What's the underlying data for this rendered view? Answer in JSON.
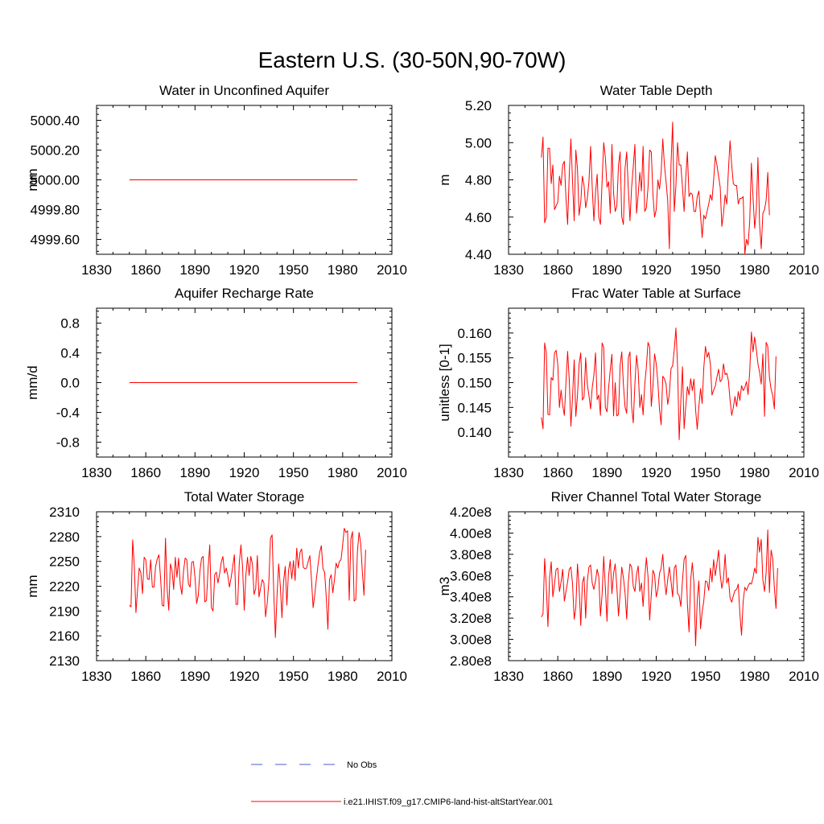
{
  "figure_title": "Eastern U.S. (30-50N,90-70W)",
  "legend": [
    {
      "label": "No Obs",
      "color": "#4a5bd1",
      "style": "dashed"
    },
    {
      "label": "i.e21.IHIST.f09_g17.CMIP6-land-hist-altStartYear.001",
      "color": "#ff0000",
      "style": "solid"
    }
  ],
  "chart_data": [
    {
      "type": "line",
      "title": "Water in Unconfined Aquifer",
      "ylabel": "mm",
      "xlim": [
        1830,
        2010
      ],
      "ylim": [
        4999.5,
        5000.5
      ],
      "xticks": [
        1830,
        1860,
        1890,
        1920,
        1950,
        1980,
        2010
      ],
      "yticks": [
        4999.6,
        4999.8,
        5000.0,
        5000.2,
        5000.4
      ],
      "ytick_labels": [
        "4999.60",
        "4999.80",
        "5000.00",
        "5000.20",
        "5000.40"
      ],
      "series": [
        {
          "color": "#ff0000",
          "x_start": 1850,
          "x_end": 1989,
          "constant": 5000.0
        }
      ]
    },
    {
      "type": "line",
      "title": "Water Table Depth",
      "ylabel": "m",
      "xlim": [
        1830,
        2010
      ],
      "ylim": [
        4.4,
        5.2
      ],
      "xticks": [
        1830,
        1860,
        1890,
        1920,
        1950,
        1980,
        2010
      ],
      "yticks": [
        4.4,
        4.6,
        4.8,
        5.0,
        5.2
      ],
      "ytick_labels": [
        "4.40",
        "4.60",
        "4.80",
        "5.00",
        "5.20"
      ],
      "series": [
        {
          "color": "#ff0000",
          "x_start": 1850,
          "values": [
            4.92,
            5.03,
            4.57,
            4.6,
            4.97,
            4.97,
            4.78,
            4.88,
            4.64,
            4.66,
            4.68,
            4.82,
            4.77,
            4.88,
            4.9,
            4.7,
            4.56,
            4.83,
            5.02,
            4.79,
            4.58,
            4.96,
            4.86,
            4.61,
            4.68,
            4.82,
            4.77,
            4.65,
            4.7,
            4.79,
            4.98,
            4.76,
            4.58,
            4.73,
            4.83,
            4.6,
            4.56,
            4.79,
            5.0,
            4.92,
            4.76,
            4.79,
            4.62,
            4.99,
            4.73,
            4.63,
            4.66,
            4.88,
            4.95,
            4.6,
            4.56,
            4.86,
            4.95,
            4.75,
            4.58,
            4.76,
            4.87,
            4.99,
            4.62,
            4.72,
            4.84,
            4.74,
            4.98,
            4.63,
            4.65,
            4.76,
            4.96,
            4.95,
            4.72,
            4.6,
            4.64,
            4.8,
            4.75,
            4.84,
            5.02,
            4.88,
            4.79,
            4.69,
            4.43,
            4.88,
            5.11,
            4.63,
            4.77,
            5.0,
            4.88,
            4.88,
            4.76,
            4.63,
            4.81,
            4.95,
            4.71,
            4.73,
            4.72,
            4.63,
            4.63,
            4.71,
            4.74,
            4.61,
            4.49,
            4.61,
            4.59,
            4.63,
            4.67,
            4.72,
            4.69,
            4.8,
            4.93,
            4.88,
            4.82,
            4.76,
            4.55,
            4.62,
            4.72,
            4.67,
            4.85,
            5.01,
            4.88,
            4.78,
            4.77,
            4.77,
            4.67,
            4.7,
            4.7,
            4.71,
            4.4,
            4.48,
            4.45,
            4.58,
            4.89,
            4.71,
            4.54,
            4.64,
            4.92,
            4.56,
            4.43,
            4.62,
            4.64,
            4.69,
            4.84,
            4.61
          ]
        }
      ]
    },
    {
      "type": "line",
      "title": "Aquifer Recharge Rate",
      "ylabel": "mm/d",
      "xlim": [
        1830,
        2010
      ],
      "ylim": [
        -1.0,
        1.0
      ],
      "xticks": [
        1830,
        1860,
        1890,
        1920,
        1950,
        1980,
        2010
      ],
      "yticks": [
        -0.8,
        -0.4,
        0.0,
        0.4,
        0.8
      ],
      "ytick_labels": [
        "-0.8",
        "-0.4",
        "0.0",
        "0.4",
        "0.8"
      ],
      "series": [
        {
          "color": "#ff0000",
          "x_start": 1850,
          "x_end": 1989,
          "constant": 0.0
        }
      ]
    },
    {
      "type": "line",
      "title": "Frac Water Table at Surface",
      "ylabel": "unitless [0-1]",
      "xlim": [
        1830,
        2010
      ],
      "ylim": [
        0.135,
        0.165
      ],
      "xticks": [
        1830,
        1860,
        1890,
        1920,
        1950,
        1980,
        2010
      ],
      "yticks": [
        0.14,
        0.145,
        0.15,
        0.155,
        0.16
      ],
      "ytick_labels": [
        "0.140",
        "0.145",
        "0.150",
        "0.155",
        "0.160"
      ],
      "series": [
        {
          "color": "#ff0000",
          "x_start": 1850,
          "values": [
            0.143,
            0.1407,
            0.158,
            0.156,
            0.1436,
            0.1435,
            0.151,
            0.1505,
            0.156,
            0.1565,
            0.1537,
            0.145,
            0.1485,
            0.1455,
            0.1434,
            0.1501,
            0.1563,
            0.1505,
            0.1412,
            0.1471,
            0.1546,
            0.1432,
            0.1474,
            0.1538,
            0.156,
            0.1465,
            0.1471,
            0.155,
            0.1497,
            0.1474,
            0.1447,
            0.149,
            0.1515,
            0.156,
            0.1466,
            0.1475,
            0.1434,
            0.158,
            0.1571,
            0.145,
            0.1441,
            0.149,
            0.1526,
            0.1557,
            0.1433,
            0.15,
            0.1433,
            0.1436,
            0.1535,
            0.1562,
            0.1496,
            0.1451,
            0.1438,
            0.155,
            0.1562,
            0.1452,
            0.1419,
            0.1497,
            0.1555,
            0.1525,
            0.145,
            0.1476,
            0.1435,
            0.1496,
            0.1532,
            0.1581,
            0.1572,
            0.1452,
            0.1492,
            0.1558,
            0.1538,
            0.1501,
            0.1446,
            0.1415,
            0.1513,
            0.1508,
            0.1497,
            0.1456,
            0.1477,
            0.1528,
            0.1534,
            0.1567,
            0.161,
            0.1534,
            0.1385,
            0.1463,
            0.1532,
            0.1407,
            0.1452,
            0.1492,
            0.1475,
            0.1508,
            0.1484,
            0.1507,
            0.1446,
            0.1406,
            0.1452,
            0.1488,
            0.1458,
            0.153,
            0.1573,
            0.1551,
            0.1561,
            0.1538,
            0.1475,
            0.1485,
            0.1493,
            0.1511,
            0.1527,
            0.1502,
            0.1506,
            0.1538,
            0.1516,
            0.1519,
            0.1504,
            0.1465,
            0.1434,
            0.145,
            0.1472,
            0.1452,
            0.1482,
            0.1464,
            0.1494,
            0.1484,
            0.149,
            0.1502,
            0.1476,
            0.1523,
            0.1602,
            0.1562,
            0.1592,
            0.1567,
            0.1538,
            0.1521,
            0.1497,
            0.1558,
            0.1432,
            0.1581,
            0.1573,
            0.1511,
            0.1487,
            0.1474,
            0.1447,
            0.1553
          ]
        }
      ]
    },
    {
      "type": "line",
      "title": "Total Water Storage",
      "ylabel": "mm",
      "xlim": [
        1830,
        2010
      ],
      "ylim": [
        2130,
        2310
      ],
      "xticks": [
        1830,
        1860,
        1890,
        1920,
        1950,
        1980,
        2010
      ],
      "yticks": [
        2130,
        2160,
        2190,
        2220,
        2250,
        2280,
        2310
      ],
      "ytick_labels": [
        "2130",
        "2160",
        "2190",
        "2220",
        "2250",
        "2280",
        "2310"
      ],
      "series": [
        {
          "color": "#ff0000",
          "x_start": 1850,
          "values": [
            2197,
            2195,
            2276,
            2245,
            2188,
            2216,
            2242,
            2236,
            2211,
            2255,
            2252,
            2229,
            2228,
            2252,
            2219,
            2219,
            2244,
            2253,
            2258,
            2230,
            2197,
            2196,
            2278,
            2218,
            2191,
            2247,
            2239,
            2216,
            2255,
            2231,
            2254,
            2222,
            2210,
            2238,
            2254,
            2252,
            2223,
            2219,
            2249,
            2250,
            2231,
            2199,
            2209,
            2238,
            2254,
            2256,
            2201,
            2203,
            2242,
            2270,
            2194,
            2190,
            2234,
            2237,
            2224,
            2235,
            2249,
            2256,
            2236,
            2242,
            2233,
            2219,
            2230,
            2244,
            2258,
            2198,
            2198,
            2248,
            2270,
            2243,
            2191,
            2233,
            2255,
            2233,
            2256,
            2247,
            2210,
            2217,
            2257,
            2207,
            2218,
            2228,
            2224,
            2183,
            2199,
            2225,
            2278,
            2282,
            2213,
            2158,
            2209,
            2247,
            2220,
            2182,
            2226,
            2244,
            2197,
            2239,
            2250,
            2229,
            2251,
            2227,
            2266,
            2242,
            2261,
            2265,
            2243,
            2241,
            2242,
            2250,
            2257,
            2228,
            2194,
            2210,
            2229,
            2246,
            2261,
            2269,
            2241,
            2237,
            2207,
            2168,
            2228,
            2234,
            2212,
            2228,
            2248,
            2242,
            2250,
            2252,
            2270,
            2290,
            2285,
            2287,
            2203,
            2277,
            2286,
            2202,
            2204,
            2262,
            2285,
            2272,
            2237,
            2209,
            2264
          ]
        }
      ]
    },
    {
      "type": "line",
      "title": "River Channel Total Water Storage",
      "ylabel": "m3",
      "xlim": [
        1830,
        2010
      ],
      "ylim": [
        280000000.0,
        420000000.0
      ],
      "xticks": [
        1830,
        1860,
        1890,
        1920,
        1950,
        1980,
        2010
      ],
      "yticks": [
        280000000.0,
        300000000.0,
        320000000.0,
        340000000.0,
        360000000.0,
        380000000.0,
        400000000.0,
        420000000.0
      ],
      "ytick_labels": [
        "2.80e8",
        "3.00e8",
        "3.20e8",
        "3.40e8",
        "3.60e8",
        "3.80e8",
        "4.00e8",
        "4.20e8"
      ],
      "series": [
        {
          "color": "#ff0000",
          "x_start": 1850,
          "values": [
            321000000.0,
            324000000.0,
            376000000.0,
            350000000.0,
            312000000.0,
            358000000.0,
            373000000.0,
            340000000.0,
            352000000.0,
            366000000.0,
            367000000.0,
            345000000.0,
            354000000.0,
            366000000.0,
            336000000.0,
            345000000.0,
            354000000.0,
            366000000.0,
            368000000.0,
            352000000.0,
            319000000.0,
            330000000.0,
            371000000.0,
            349000000.0,
            313000000.0,
            353000000.0,
            359000000.0,
            320000000.0,
            355000000.0,
            368000000.0,
            370000000.0,
            353000000.0,
            347000000.0,
            355000000.0,
            366000000.0,
            359000000.0,
            322000000.0,
            342000000.0,
            378000000.0,
            349000000.0,
            317000000.0,
            360000000.0,
            375000000.0,
            343000000.0,
            362000000.0,
            371000000.0,
            349000000.0,
            322000000.0,
            343000000.0,
            368000000.0,
            358000000.0,
            344000000.0,
            319000000.0,
            354000000.0,
            371000000.0,
            368000000.0,
            350000000.0,
            345000000.0,
            361000000.0,
            369000000.0,
            345000000.0,
            353000000.0,
            331000000.0,
            358000000.0,
            377000000.0,
            359000000.0,
            318000000.0,
            342000000.0,
            365000000.0,
            361000000.0,
            340000000.0,
            347000000.0,
            362000000.0,
            367000000.0,
            380000000.0,
            357000000.0,
            342000000.0,
            356000000.0,
            368000000.0,
            355000000.0,
            340000000.0,
            367000000.0,
            370000000.0,
            343000000.0,
            341000000.0,
            331000000.0,
            355000000.0,
            375000000.0,
            379000000.0,
            334000000.0,
            307000000.0,
            356000000.0,
            372000000.0,
            353000000.0,
            294000000.0,
            337000000.0,
            355000000.0,
            310000000.0,
            326000000.0,
            336000000.0,
            355000000.0,
            354000000.0,
            346000000.0,
            367000000.0,
            354000000.0,
            375000000.0,
            360000000.0,
            371000000.0,
            384000000.0,
            361000000.0,
            348000000.0,
            357000000.0,
            380000000.0,
            353000000.0,
            358000000.0,
            339000000.0,
            335000000.0,
            341000000.0,
            346000000.0,
            347000000.0,
            352000000.0,
            324000000.0,
            304000000.0,
            336000000.0,
            349000000.0,
            346000000.0,
            350000000.0,
            353000000.0,
            352000000.0,
            358000000.0,
            367000000.0,
            362000000.0,
            396000000.0,
            382000000.0,
            394000000.0,
            356000000.0,
            345000000.0,
            363000000.0,
            403000000.0,
            344000000.0,
            384000000.0,
            376000000.0,
            349000000.0,
            329000000.0,
            367000000.0
          ]
        }
      ]
    }
  ]
}
